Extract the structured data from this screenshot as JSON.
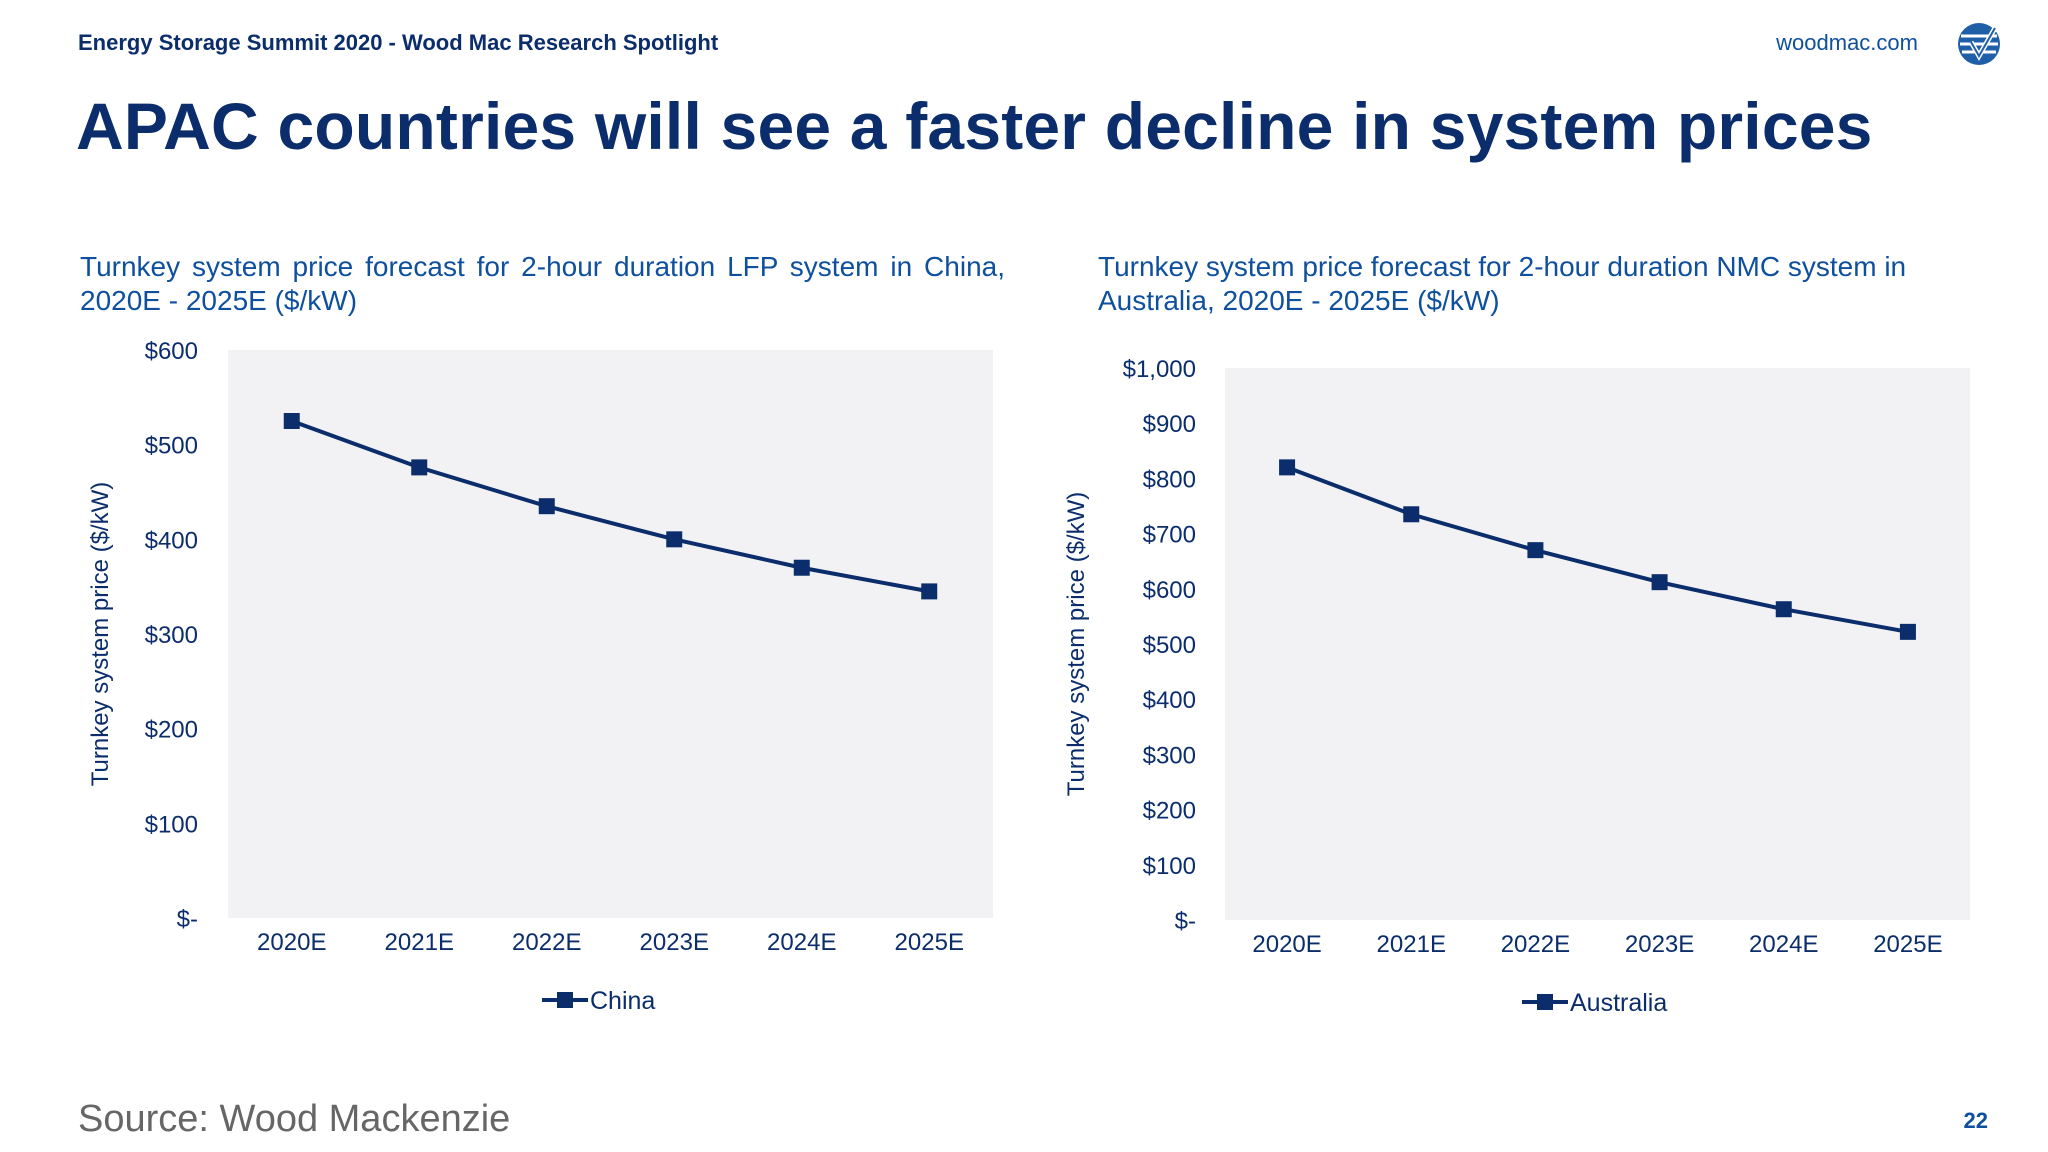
{
  "header": {
    "event": "Energy Storage Summit 2020 - Wood Mac Research Spotlight",
    "site": "woodmac.com"
  },
  "slide": {
    "title": "APAC countries will see a faster decline in system prices",
    "source": "Source: Wood Mackenzie",
    "page_number": "22"
  },
  "colors": {
    "series": "#0b2d6b",
    "plot_bg": "#f2f2f4",
    "title": "#0b2d6b",
    "accent": "#0e4f9e"
  },
  "chart_data": [
    {
      "type": "line",
      "title": "Turnkey system price forecast for 2-hour duration LFP system in China, 2020E - 2025E ($/kW)",
      "ylabel": "Turnkey system price ($/kW)",
      "xlabel": "",
      "categories": [
        "2020E",
        "2021E",
        "2022E",
        "2023E",
        "2024E",
        "2025E"
      ],
      "series": [
        {
          "name": "China",
          "values": [
            525,
            476,
            435,
            400,
            370,
            345
          ]
        }
      ],
      "ylim": [
        0,
        600
      ],
      "yticks": [
        0,
        100,
        200,
        300,
        400,
        500,
        600
      ],
      "ytick_labels": [
        "$-",
        "$100",
        "$200",
        "$300",
        "$400",
        "$500",
        "$600"
      ],
      "grid": false,
      "legend": "bottom",
      "marker": "square"
    },
    {
      "type": "line",
      "title": "Turnkey system price forecast for 2-hour duration NMC system in Australia, 2020E - 2025E ($/kW)",
      "ylabel": "Turnkey system price ($/kW)",
      "xlabel": "",
      "categories": [
        "2020E",
        "2021E",
        "2022E",
        "2023E",
        "2024E",
        "2025E"
      ],
      "series": [
        {
          "name": "Australia",
          "values": [
            820,
            735,
            670,
            612,
            563,
            522
          ]
        }
      ],
      "ylim": [
        0,
        1000
      ],
      "yticks": [
        0,
        100,
        200,
        300,
        400,
        500,
        600,
        700,
        800,
        900,
        1000
      ],
      "ytick_labels": [
        "$-",
        "$100",
        "$200",
        "$300",
        "$400",
        "$500",
        "$600",
        "$700",
        "$800",
        "$900",
        "$1,000"
      ],
      "grid": false,
      "legend": "bottom",
      "marker": "square"
    }
  ]
}
